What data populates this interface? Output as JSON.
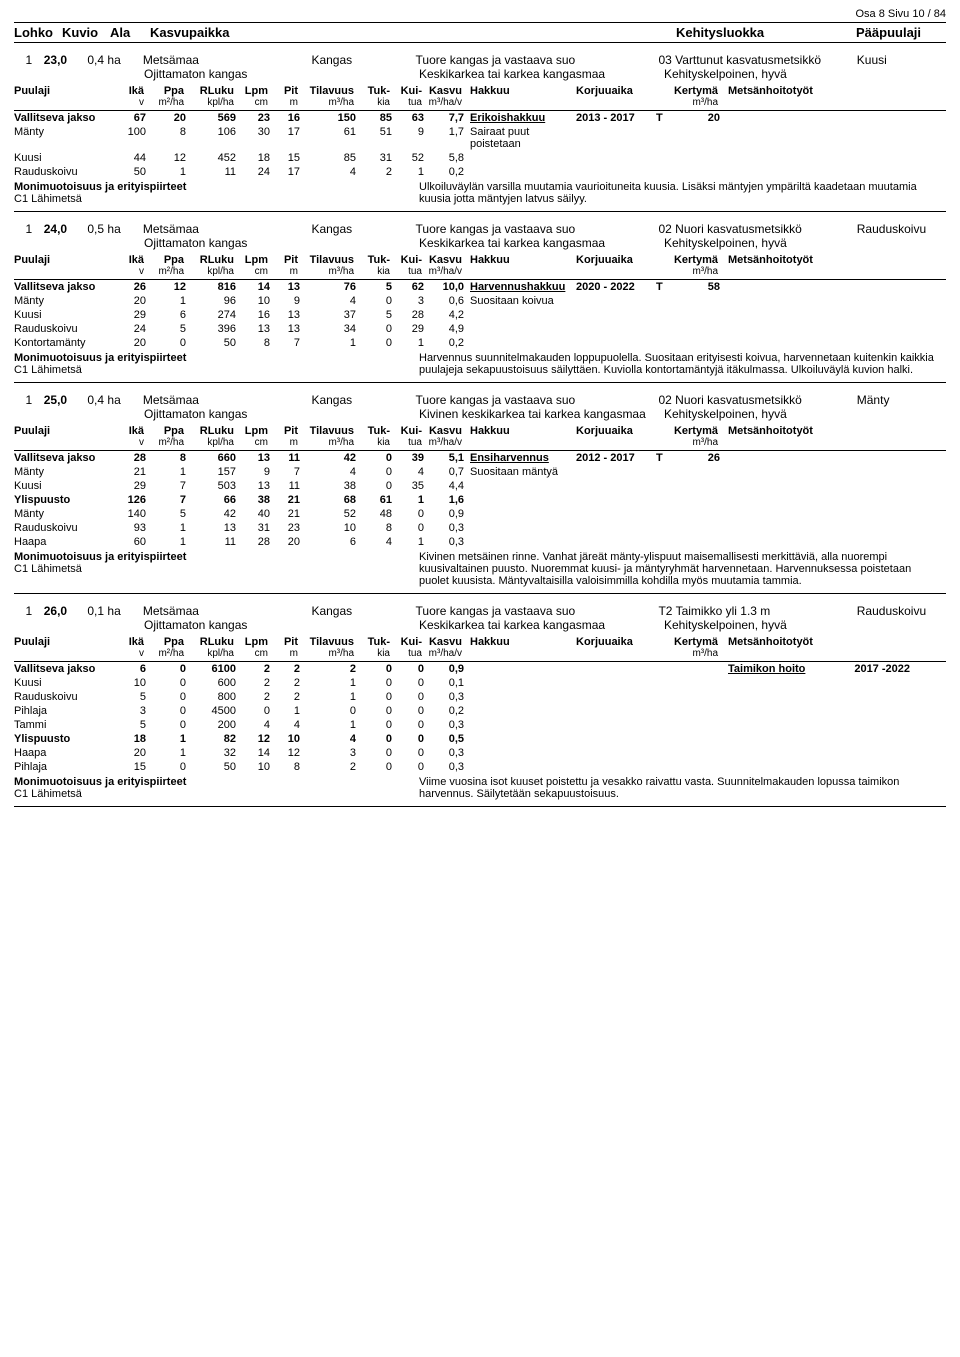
{
  "page_ref": "Osa 8 Sivu 10 / 84",
  "main_headers": {
    "lohko": "Lohko",
    "kuvio": "Kuvio",
    "ala": "Ala",
    "kasvupaikka": "Kasvupaikka",
    "kehitysluokka": "Kehitysluokka",
    "paapuulaji": "Pääpuulaji"
  },
  "col_labels": {
    "puulaji": "Puulaji",
    "ika": "Ikä",
    "ppa": "Ppa",
    "rluku": "RLuku",
    "lpm": "Lpm",
    "pit": "Pit",
    "tilavuus": "Tilavuus",
    "tuk": "Tuk-",
    "kui": "Kui-",
    "kasvu": "Kasvu",
    "hakkuu": "Hakkuu",
    "korjuuaika": "Korjuuaika",
    "kertyma": "Kertymä",
    "metsanhoito": "Metsänhoitotyöt"
  },
  "col_units": {
    "ika": "v",
    "ppa": "m²/ha",
    "rluku": "kpl/ha",
    "lpm": "cm",
    "pit": "m",
    "tilavuus": "m³/ha",
    "tuk": "kia",
    "kui": "tua",
    "kasvu": "m³/ha/v",
    "kertyma": "m³/ha"
  },
  "note_title": "Monimuotoisuus ja erityispiirteet",
  "note_sub": "C1 Lähimetsä",
  "stands": [
    {
      "lohko": "1",
      "kuvio": "23,0",
      "ala": "0,4 ha",
      "kasvupaikka1": "Metsämaa",
      "kasvupaikka2": "Kangas",
      "tuore": "Tuore kangas ja vastaava suo",
      "kehluokka": "03 Varttunut kasvatusmetsikkö",
      "paapuu": "Kuusi",
      "maa2": "Ojittamaton kangas",
      "maa3": "Keskikarkea tai karkea kangasmaa",
      "kelp": "Kehityskelpoinen, hyvä",
      "rows": [
        {
          "b": true,
          "sp": "Vallitseva jakso",
          "v": [
            "67",
            "20",
            "569",
            "23",
            "16",
            "150",
            "85",
            "63",
            "7,7"
          ],
          "hak": "Erikoishakkuu",
          "hu": true,
          "kor": "2013 - 2017",
          "t": "T",
          "ker": "20"
        },
        {
          "sp": "Mänty",
          "v": [
            "100",
            "8",
            "106",
            "30",
            "17",
            "61",
            "51",
            "9",
            "1,7"
          ],
          "side": "Sairaat puut poistetaan"
        },
        {
          "sp": "Kuusi",
          "v": [
            "44",
            "12",
            "452",
            "18",
            "15",
            "85",
            "31",
            "52",
            "5,8"
          ]
        },
        {
          "sp": "Rauduskoivu",
          "v": [
            "50",
            "1",
            "11",
            "24",
            "17",
            "4",
            "2",
            "1",
            "0,2"
          ]
        }
      ],
      "note": "Ulkoiluväylän varsilla muutamia vaurioituneita kuusia. Lisäksi mäntyjen ympäriltä kaadetaan muutamia kuusia jotta mäntyjen latvus säilyy."
    },
    {
      "lohko": "1",
      "kuvio": "24,0",
      "ala": "0,5 ha",
      "kasvupaikka1": "Metsämaa",
      "kasvupaikka2": "Kangas",
      "tuore": "Tuore kangas ja vastaava suo",
      "kehluokka": "02 Nuori kasvatusmetsikkö",
      "paapuu": "Rauduskoivu",
      "maa2": "Ojittamaton kangas",
      "maa3": "Keskikarkea tai karkea kangasmaa",
      "kelp": "Kehityskelpoinen, hyvä",
      "rows": [
        {
          "b": true,
          "sp": "Vallitseva jakso",
          "v": [
            "26",
            "12",
            "816",
            "14",
            "13",
            "76",
            "5",
            "62",
            "10,0"
          ],
          "hak": "Harvennushakkuu",
          "hu": true,
          "kor": "2020 - 2022",
          "t": "T",
          "ker": "58"
        },
        {
          "sp": "Mänty",
          "v": [
            "20",
            "1",
            "96",
            "10",
            "9",
            "4",
            "0",
            "3",
            "0,6"
          ],
          "side": "Suositaan koivua"
        },
        {
          "sp": "Kuusi",
          "v": [
            "29",
            "6",
            "274",
            "16",
            "13",
            "37",
            "5",
            "28",
            "4,2"
          ]
        },
        {
          "sp": "Rauduskoivu",
          "v": [
            "24",
            "5",
            "396",
            "13",
            "13",
            "34",
            "0",
            "29",
            "4,9"
          ]
        },
        {
          "sp": "Kontortamänty",
          "v": [
            "20",
            "0",
            "50",
            "8",
            "7",
            "1",
            "0",
            "1",
            "0,2"
          ]
        }
      ],
      "note": "Harvennus suunnitelmakauden loppupuolella. Suositaan erityisesti koivua, harvennetaan kuitenkin kaikkia puulajeja sekapuustoisuus säilyttäen. Kuviolla kontortamäntyjä itäkulmassa. Ulkoiluväylä kuvion halki."
    },
    {
      "lohko": "1",
      "kuvio": "25,0",
      "ala": "0,4 ha",
      "kasvupaikka1": "Metsämaa",
      "kasvupaikka2": "Kangas",
      "tuore": "Tuore kangas ja vastaava suo",
      "kehluokka": "02 Nuori kasvatusmetsikkö",
      "paapuu": "Mänty",
      "maa2": "Ojittamaton kangas",
      "maa3": "Kivinen keskikarkea tai karkea kangasmaa",
      "kelp": "Kehityskelpoinen, hyvä",
      "rows": [
        {
          "b": true,
          "sp": "Vallitseva jakso",
          "v": [
            "28",
            "8",
            "660",
            "13",
            "11",
            "42",
            "0",
            "39",
            "5,1"
          ],
          "hak": "Ensiharvennus",
          "hu": true,
          "kor": "2012 - 2017",
          "t": "T",
          "ker": "26"
        },
        {
          "sp": "Mänty",
          "v": [
            "21",
            "1",
            "157",
            "9",
            "7",
            "4",
            "0",
            "4",
            "0,7"
          ],
          "side": "Suositaan mäntyä"
        },
        {
          "sp": "Kuusi",
          "v": [
            "29",
            "7",
            "503",
            "13",
            "11",
            "38",
            "0",
            "35",
            "4,4"
          ]
        },
        {
          "b": true,
          "sp": "Ylispuusto",
          "v": [
            "126",
            "7",
            "66",
            "38",
            "21",
            "68",
            "61",
            "1",
            "1,6"
          ]
        },
        {
          "sp": "Mänty",
          "v": [
            "140",
            "5",
            "42",
            "40",
            "21",
            "52",
            "48",
            "0",
            "0,9"
          ]
        },
        {
          "sp": "Rauduskoivu",
          "v": [
            "93",
            "1",
            "13",
            "31",
            "23",
            "10",
            "8",
            "0",
            "0,3"
          ]
        },
        {
          "sp": "Haapa",
          "v": [
            "60",
            "1",
            "11",
            "28",
            "20",
            "6",
            "4",
            "1",
            "0,3"
          ]
        }
      ],
      "note": "Kivinen metsäinen rinne. Vanhat järeät mänty-ylispuut maisemallisesti merkittäviä, alla nuorempi kuusivaltainen puusto. Nuoremmat kuusi- ja mäntyryhmät harvennetaan. Harvennuksessa poistetaan puolet kuusista. Mäntyvaltaisilla valoisimmilla kohdilla myös muutamia tammia."
    },
    {
      "lohko": "1",
      "kuvio": "26,0",
      "ala": "0,1 ha",
      "kasvupaikka1": "Metsämaa",
      "kasvupaikka2": "Kangas",
      "tuore": "Tuore kangas ja vastaava suo",
      "kehluokka": "T2 Taimikko yli 1.3 m",
      "paapuu": "Rauduskoivu",
      "maa2": "Ojittamaton kangas",
      "maa3": "Keskikarkea tai karkea kangasmaa",
      "kelp": "Kehityskelpoinen, hyvä",
      "rows": [
        {
          "b": true,
          "sp": "Vallitseva jakso",
          "v": [
            "6",
            "0",
            "6100",
            "2",
            "2",
            "2",
            "0",
            "0",
            "0,9"
          ],
          "met": "Taimikon hoito",
          "mu": true,
          "my": "2017 -2022"
        },
        {
          "sp": "Kuusi",
          "v": [
            "10",
            "0",
            "600",
            "2",
            "2",
            "1",
            "0",
            "0",
            "0,1"
          ]
        },
        {
          "sp": "Rauduskoivu",
          "v": [
            "5",
            "0",
            "800",
            "2",
            "2",
            "1",
            "0",
            "0",
            "0,3"
          ]
        },
        {
          "sp": "Pihlaja",
          "v": [
            "3",
            "0",
            "4500",
            "0",
            "1",
            "0",
            "0",
            "0",
            "0,2"
          ]
        },
        {
          "sp": "Tammi",
          "v": [
            "5",
            "0",
            "200",
            "4",
            "4",
            "1",
            "0",
            "0",
            "0,3"
          ]
        },
        {
          "b": true,
          "sp": "Ylispuusto",
          "v": [
            "18",
            "1",
            "82",
            "12",
            "10",
            "4",
            "0",
            "0",
            "0,5"
          ]
        },
        {
          "sp": "Haapa",
          "v": [
            "20",
            "1",
            "32",
            "14",
            "12",
            "3",
            "0",
            "0",
            "0,3"
          ]
        },
        {
          "sp": "Pihlaja",
          "v": [
            "15",
            "0",
            "50",
            "10",
            "8",
            "2",
            "0",
            "0",
            "0,3"
          ]
        }
      ],
      "note": "Viime vuosina isot kuuset poistettu ja vesakko raivattu vasta. Suunnitelmakauden lopussa taimikon harvennus. Säilytetään sekapuustoisuus."
    }
  ]
}
